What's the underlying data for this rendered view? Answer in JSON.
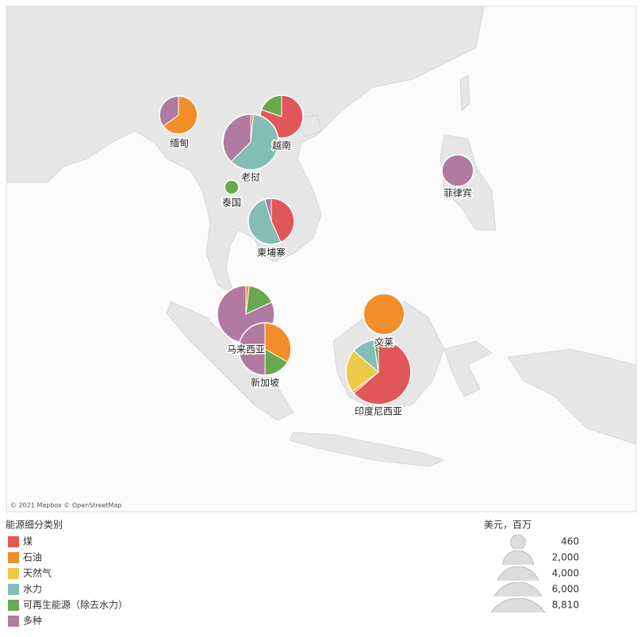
{
  "map": {
    "attribution": "© 2021 Mapbox © OpenStreetMap",
    "countries": [
      {
        "name": "缅甸",
        "values": [
          0,
          1950,
          0,
          0,
          0,
          1050
        ]
      },
      {
        "name": "越南",
        "values": [
          3050,
          0,
          0,
          0,
          750,
          0
        ]
      },
      {
        "name": "老挝",
        "values": [
          0,
          100,
          0,
          3900,
          0,
          2400
        ]
      },
      {
        "name": "泰国",
        "values": [
          0,
          0,
          0,
          0,
          420,
          0
        ]
      },
      {
        "name": "柬埔寨",
        "values": [
          1900,
          0,
          0,
          2300,
          0,
          200
        ]
      },
      {
        "name": "菲律宾",
        "values": [
          0,
          0,
          0,
          0,
          0,
          2100
        ]
      },
      {
        "name": "马来西亚",
        "values": [
          0,
          130,
          0,
          0,
          1100,
          5570
        ]
      },
      {
        "name": "新加坡",
        "values": [
          0,
          1900,
          0,
          0,
          950,
          2850
        ]
      },
      {
        "name": "文莱",
        "values": [
          0,
          3500,
          0,
          0,
          0,
          0
        ]
      },
      {
        "name": "印度尼西亚",
        "values": [
          5600,
          100,
          1900,
          1000,
          200,
          0
        ]
      }
    ]
  },
  "color_legend": {
    "title": "能源细分类别",
    "items": [
      {
        "name": "煤",
        "color": "#e15759"
      },
      {
        "name": "石油",
        "color": "#f28e2b"
      },
      {
        "name": "天然气",
        "color": "#edc948"
      },
      {
        "name": "水力",
        "color": "#86bcb6"
      },
      {
        "name": "可再生能源（除去水力）",
        "color": "#6aa84f"
      },
      {
        "name": "多种",
        "color": "#b07aa1"
      }
    ]
  },
  "size_legend": {
    "title": "美元，百万",
    "ticks": [
      460,
      {
        "value": 2000,
        "label": "2,000"
      },
      {
        "value": 4000,
        "label": "4,000"
      },
      {
        "value": 6000,
        "label": "6,000"
      },
      {
        "value": 8810,
        "label": "8,810"
      }
    ]
  }
}
